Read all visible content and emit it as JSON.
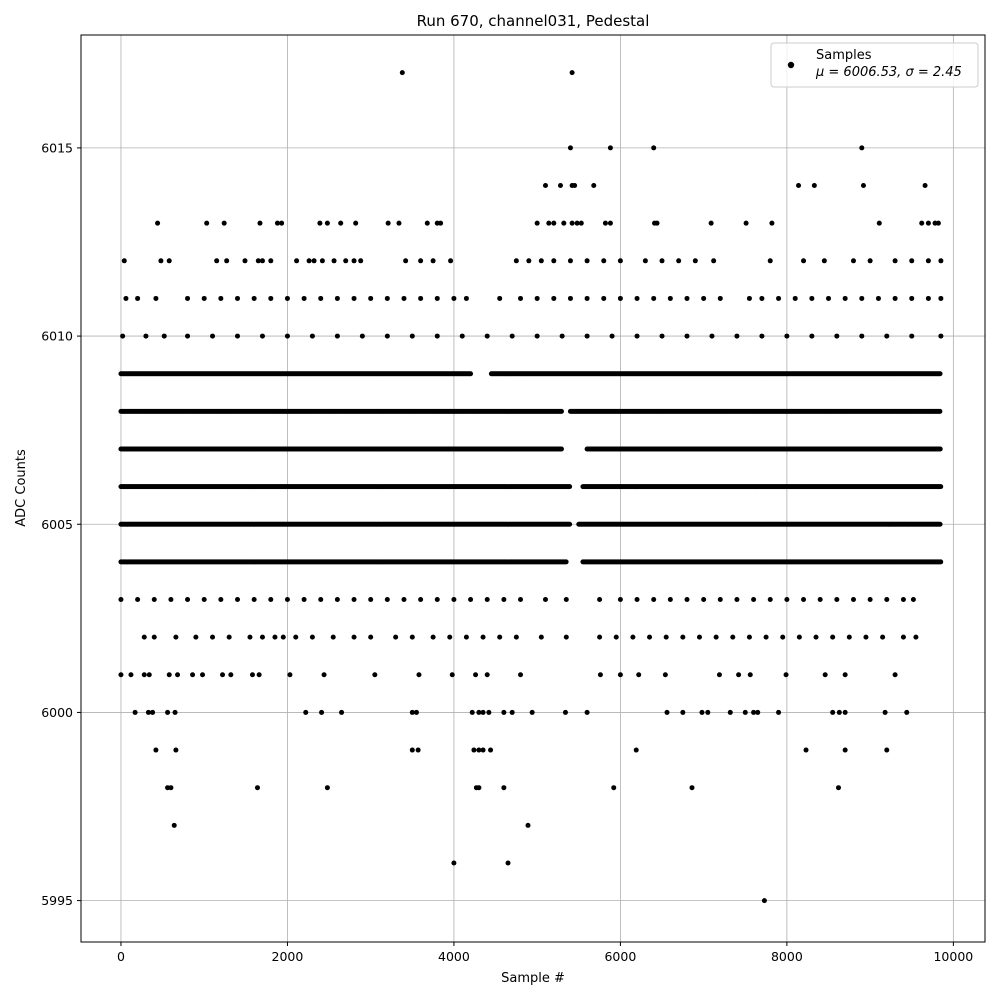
{
  "chart_data": {
    "type": "scatter",
    "title": "Run 670, channel031, Pedestal",
    "xlabel": "Sample #",
    "ylabel": "ADC Counts",
    "xlim": [
      -480,
      10380
    ],
    "ylim": [
      5993.9,
      6018.0
    ],
    "xticks": [
      0,
      2000,
      4000,
      6000,
      8000,
      10000
    ],
    "yticks": [
      5995,
      6000,
      6005,
      6010,
      6015
    ],
    "grid": true,
    "marker_color": "#000000",
    "legend": {
      "position": "top-right",
      "series_name": "Samples",
      "stats_label": "μ = 6006.53, σ = 2.45"
    },
    "levels": [
      {
        "y": 6004,
        "ranges": [
          [
            0,
            5350
          ],
          [
            5550,
            9850
          ]
        ]
      },
      {
        "y": 6005,
        "ranges": [
          [
            0,
            5400
          ],
          [
            5500,
            9850
          ]
        ]
      },
      {
        "y": 6006,
        "ranges": [
          [
            0,
            5400
          ],
          [
            5550,
            9850
          ]
        ]
      },
      {
        "y": 6007,
        "ranges": [
          [
            0,
            5300
          ],
          [
            5600,
            9850
          ]
        ]
      },
      {
        "y": 6008,
        "ranges": [
          [
            0,
            5300
          ],
          [
            5400,
            9850
          ]
        ]
      },
      {
        "y": 6009,
        "ranges": [
          [
            0,
            4200
          ],
          [
            4450,
            9850
          ]
        ]
      }
    ],
    "points": [
      [
        3380,
        6017
      ],
      [
        5420,
        6017
      ],
      [
        5400,
        6015
      ],
      [
        5880,
        6015
      ],
      [
        6400,
        6015
      ],
      [
        8900,
        6015
      ],
      [
        5100,
        6014
      ],
      [
        5280,
        6014
      ],
      [
        5420,
        6014
      ],
      [
        5450,
        6014
      ],
      [
        5680,
        6014
      ],
      [
        8140,
        6014
      ],
      [
        8330,
        6014
      ],
      [
        8920,
        6014
      ],
      [
        9660,
        6014
      ],
      [
        440,
        6013
      ],
      [
        1030,
        6013
      ],
      [
        1240,
        6013
      ],
      [
        1670,
        6013
      ],
      [
        1880,
        6013
      ],
      [
        1930,
        6013
      ],
      [
        2390,
        6013
      ],
      [
        2480,
        6013
      ],
      [
        2640,
        6013
      ],
      [
        2820,
        6013
      ],
      [
        3210,
        6013
      ],
      [
        3340,
        6013
      ],
      [
        3680,
        6013
      ],
      [
        3800,
        6013
      ],
      [
        3840,
        6013
      ],
      [
        5000,
        6013
      ],
      [
        5140,
        6013
      ],
      [
        5200,
        6013
      ],
      [
        5320,
        6013
      ],
      [
        5420,
        6013
      ],
      [
        5480,
        6013
      ],
      [
        5530,
        6013
      ],
      [
        5820,
        6013
      ],
      [
        5880,
        6013
      ],
      [
        6410,
        6013
      ],
      [
        6440,
        6013
      ],
      [
        7090,
        6013
      ],
      [
        7510,
        6013
      ],
      [
        7820,
        6013
      ],
      [
        9110,
        6013
      ],
      [
        9620,
        6013
      ],
      [
        9700,
        6013
      ],
      [
        9780,
        6013
      ],
      [
        9820,
        6013
      ],
      [
        40,
        6012
      ],
      [
        480,
        6012
      ],
      [
        580,
        6012
      ],
      [
        1150,
        6012
      ],
      [
        1270,
        6012
      ],
      [
        1490,
        6012
      ],
      [
        1650,
        6012
      ],
      [
        1700,
        6012
      ],
      [
        1800,
        6012
      ],
      [
        2110,
        6012
      ],
      [
        2260,
        6012
      ],
      [
        2320,
        6012
      ],
      [
        2420,
        6012
      ],
      [
        2560,
        6012
      ],
      [
        2700,
        6012
      ],
      [
        2800,
        6012
      ],
      [
        2880,
        6012
      ],
      [
        3420,
        6012
      ],
      [
        3600,
        6012
      ],
      [
        3750,
        6012
      ],
      [
        3960,
        6012
      ],
      [
        4750,
        6012
      ],
      [
        4900,
        6012
      ],
      [
        5050,
        6012
      ],
      [
        5200,
        6012
      ],
      [
        5400,
        6012
      ],
      [
        5600,
        6012
      ],
      [
        5800,
        6012
      ],
      [
        6000,
        6012
      ],
      [
        6300,
        6012
      ],
      [
        6500,
        6012
      ],
      [
        6700,
        6012
      ],
      [
        6900,
        6012
      ],
      [
        7120,
        6012
      ],
      [
        7800,
        6012
      ],
      [
        8200,
        6012
      ],
      [
        8450,
        6012
      ],
      [
        8800,
        6012
      ],
      [
        9000,
        6012
      ],
      [
        9300,
        6012
      ],
      [
        9500,
        6012
      ],
      [
        9700,
        6012
      ],
      [
        9850,
        6012
      ],
      [
        60,
        6011
      ],
      [
        200,
        6011
      ],
      [
        420,
        6011
      ],
      [
        800,
        6011
      ],
      [
        1000,
        6011
      ],
      [
        1200,
        6011
      ],
      [
        1400,
        6011
      ],
      [
        1600,
        6011
      ],
      [
        1800,
        6011
      ],
      [
        2000,
        6011
      ],
      [
        2200,
        6011
      ],
      [
        2400,
        6011
      ],
      [
        2600,
        6011
      ],
      [
        2800,
        6011
      ],
      [
        3000,
        6011
      ],
      [
        3200,
        6011
      ],
      [
        3400,
        6011
      ],
      [
        3600,
        6011
      ],
      [
        3800,
        6011
      ],
      [
        4000,
        6011
      ],
      [
        4150,
        6011
      ],
      [
        4550,
        6011
      ],
      [
        4800,
        6011
      ],
      [
        5000,
        6011
      ],
      [
        5200,
        6011
      ],
      [
        5400,
        6011
      ],
      [
        5600,
        6011
      ],
      [
        5800,
        6011
      ],
      [
        6000,
        6011
      ],
      [
        6200,
        6011
      ],
      [
        6400,
        6011
      ],
      [
        6600,
        6011
      ],
      [
        6800,
        6011
      ],
      [
        7000,
        6011
      ],
      [
        7200,
        6011
      ],
      [
        7550,
        6011
      ],
      [
        7700,
        6011
      ],
      [
        7900,
        6011
      ],
      [
        8100,
        6011
      ],
      [
        8300,
        6011
      ],
      [
        8500,
        6011
      ],
      [
        8700,
        6011
      ],
      [
        8900,
        6011
      ],
      [
        9100,
        6011
      ],
      [
        9300,
        6011
      ],
      [
        9500,
        6011
      ],
      [
        9700,
        6011
      ],
      [
        9850,
        6011
      ],
      [
        20,
        6010
      ],
      [
        300,
        6010
      ],
      [
        520,
        6010
      ],
      [
        800,
        6010
      ],
      [
        1100,
        6010
      ],
      [
        1400,
        6010
      ],
      [
        1700,
        6010
      ],
      [
        2000,
        6010
      ],
      [
        2300,
        6010
      ],
      [
        2600,
        6010
      ],
      [
        2900,
        6010
      ],
      [
        3200,
        6010
      ],
      [
        3500,
        6010
      ],
      [
        3800,
        6010
      ],
      [
        4100,
        6010
      ],
      [
        4400,
        6010
      ],
      [
        4700,
        6010
      ],
      [
        5000,
        6010
      ],
      [
        5300,
        6010
      ],
      [
        5600,
        6010
      ],
      [
        5900,
        6010
      ],
      [
        6200,
        6010
      ],
      [
        6500,
        6010
      ],
      [
        6800,
        6010
      ],
      [
        7100,
        6010
      ],
      [
        7400,
        6010
      ],
      [
        7700,
        6010
      ],
      [
        8000,
        6010
      ],
      [
        8300,
        6010
      ],
      [
        8600,
        6010
      ],
      [
        8900,
        6010
      ],
      [
        9200,
        6010
      ],
      [
        9500,
        6010
      ],
      [
        9850,
        6010
      ],
      [
        0,
        6003
      ],
      [
        200,
        6003
      ],
      [
        400,
        6003
      ],
      [
        600,
        6003
      ],
      [
        800,
        6003
      ],
      [
        1000,
        6003
      ],
      [
        1200,
        6003
      ],
      [
        1400,
        6003
      ],
      [
        1600,
        6003
      ],
      [
        1800,
        6003
      ],
      [
        2000,
        6003
      ],
      [
        2200,
        6003
      ],
      [
        2400,
        6003
      ],
      [
        2600,
        6003
      ],
      [
        2800,
        6003
      ],
      [
        3000,
        6003
      ],
      [
        3200,
        6003
      ],
      [
        3400,
        6003
      ],
      [
        3600,
        6003
      ],
      [
        3800,
        6003
      ],
      [
        4000,
        6003
      ],
      [
        4200,
        6003
      ],
      [
        4400,
        6003
      ],
      [
        4600,
        6003
      ],
      [
        4800,
        6003
      ],
      [
        5100,
        6003
      ],
      [
        5350,
        6003
      ],
      [
        5750,
        6003
      ],
      [
        6000,
        6003
      ],
      [
        6200,
        6003
      ],
      [
        6400,
        6003
      ],
      [
        6600,
        6003
      ],
      [
        6800,
        6003
      ],
      [
        7000,
        6003
      ],
      [
        7200,
        6003
      ],
      [
        7400,
        6003
      ],
      [
        7600,
        6003
      ],
      [
        7800,
        6003
      ],
      [
        8000,
        6003
      ],
      [
        8200,
        6003
      ],
      [
        8400,
        6003
      ],
      [
        8600,
        6003
      ],
      [
        8800,
        6003
      ],
      [
        9000,
        6003
      ],
      [
        9200,
        6003
      ],
      [
        9400,
        6003
      ],
      [
        9520,
        6003
      ],
      [
        280,
        6002
      ],
      [
        400,
        6002
      ],
      [
        660,
        6002
      ],
      [
        900,
        6002
      ],
      [
        1100,
        6002
      ],
      [
        1300,
        6002
      ],
      [
        1550,
        6002
      ],
      [
        1700,
        6002
      ],
      [
        1850,
        6002
      ],
      [
        1950,
        6002
      ],
      [
        2100,
        6002
      ],
      [
        2300,
        6002
      ],
      [
        2550,
        6002
      ],
      [
        2800,
        6002
      ],
      [
        3000,
        6002
      ],
      [
        3300,
        6002
      ],
      [
        3500,
        6002
      ],
      [
        3750,
        6002
      ],
      [
        3950,
        6002
      ],
      [
        4150,
        6002
      ],
      [
        4350,
        6002
      ],
      [
        4550,
        6002
      ],
      [
        4750,
        6002
      ],
      [
        5050,
        6002
      ],
      [
        5350,
        6002
      ],
      [
        5750,
        6002
      ],
      [
        5950,
        6002
      ],
      [
        6150,
        6002
      ],
      [
        6350,
        6002
      ],
      [
        6550,
        6002
      ],
      [
        6750,
        6002
      ],
      [
        6950,
        6002
      ],
      [
        7150,
        6002
      ],
      [
        7350,
        6002
      ],
      [
        7550,
        6002
      ],
      [
        7750,
        6002
      ],
      [
        7950,
        6002
      ],
      [
        8150,
        6002
      ],
      [
        8350,
        6002
      ],
      [
        8550,
        6002
      ],
      [
        8750,
        6002
      ],
      [
        8950,
        6002
      ],
      [
        9150,
        6002
      ],
      [
        9400,
        6002
      ],
      [
        9550,
        6002
      ],
      [
        0,
        6001
      ],
      [
        120,
        6001
      ],
      [
        280,
        6001
      ],
      [
        340,
        6001
      ],
      [
        580,
        6001
      ],
      [
        680,
        6001
      ],
      [
        860,
        6001
      ],
      [
        980,
        6001
      ],
      [
        1220,
        6001
      ],
      [
        1320,
        6001
      ],
      [
        1580,
        6001
      ],
      [
        1660,
        6001
      ],
      [
        2030,
        6001
      ],
      [
        2440,
        6001
      ],
      [
        3050,
        6001
      ],
      [
        3580,
        6001
      ],
      [
        3980,
        6001
      ],
      [
        4260,
        6001
      ],
      [
        4400,
        6001
      ],
      [
        4800,
        6001
      ],
      [
        5760,
        6001
      ],
      [
        6000,
        6001
      ],
      [
        6220,
        6001
      ],
      [
        6540,
        6001
      ],
      [
        7190,
        6001
      ],
      [
        7420,
        6001
      ],
      [
        7560,
        6001
      ],
      [
        7990,
        6001
      ],
      [
        8460,
        6001
      ],
      [
        8700,
        6001
      ],
      [
        9300,
        6001
      ],
      [
        170,
        6000
      ],
      [
        330,
        6000
      ],
      [
        380,
        6000
      ],
      [
        560,
        6000
      ],
      [
        650,
        6000
      ],
      [
        2220,
        6000
      ],
      [
        2410,
        6000
      ],
      [
        2650,
        6000
      ],
      [
        3500,
        6000
      ],
      [
        3550,
        6000
      ],
      [
        4220,
        6000
      ],
      [
        4300,
        6000
      ],
      [
        4350,
        6000
      ],
      [
        4420,
        6000
      ],
      [
        4600,
        6000
      ],
      [
        4700,
        6000
      ],
      [
        4940,
        6000
      ],
      [
        5340,
        6000
      ],
      [
        5600,
        6000
      ],
      [
        6560,
        6000
      ],
      [
        6750,
        6000
      ],
      [
        6980,
        6000
      ],
      [
        7050,
        6000
      ],
      [
        7320,
        6000
      ],
      [
        7500,
        6000
      ],
      [
        7600,
        6000
      ],
      [
        7650,
        6000
      ],
      [
        7900,
        6000
      ],
      [
        8550,
        6000
      ],
      [
        8630,
        6000
      ],
      [
        8700,
        6000
      ],
      [
        9180,
        6000
      ],
      [
        9440,
        6000
      ],
      [
        420,
        5999
      ],
      [
        660,
        5999
      ],
      [
        3500,
        5999
      ],
      [
        3570,
        5999
      ],
      [
        4240,
        5999
      ],
      [
        4300,
        5999
      ],
      [
        4350,
        5999
      ],
      [
        4440,
        5999
      ],
      [
        6190,
        5999
      ],
      [
        8230,
        5999
      ],
      [
        8700,
        5999
      ],
      [
        9200,
        5999
      ],
      [
        560,
        5998
      ],
      [
        600,
        5998
      ],
      [
        1640,
        5998
      ],
      [
        2480,
        5998
      ],
      [
        4270,
        5998
      ],
      [
        4300,
        5998
      ],
      [
        4600,
        5998
      ],
      [
        5920,
        5998
      ],
      [
        6860,
        5998
      ],
      [
        8620,
        5998
      ],
      [
        640,
        5997
      ],
      [
        4890,
        5997
      ],
      [
        4000,
        5996
      ],
      [
        4650,
        5996
      ],
      [
        7730,
        5995
      ]
    ]
  }
}
